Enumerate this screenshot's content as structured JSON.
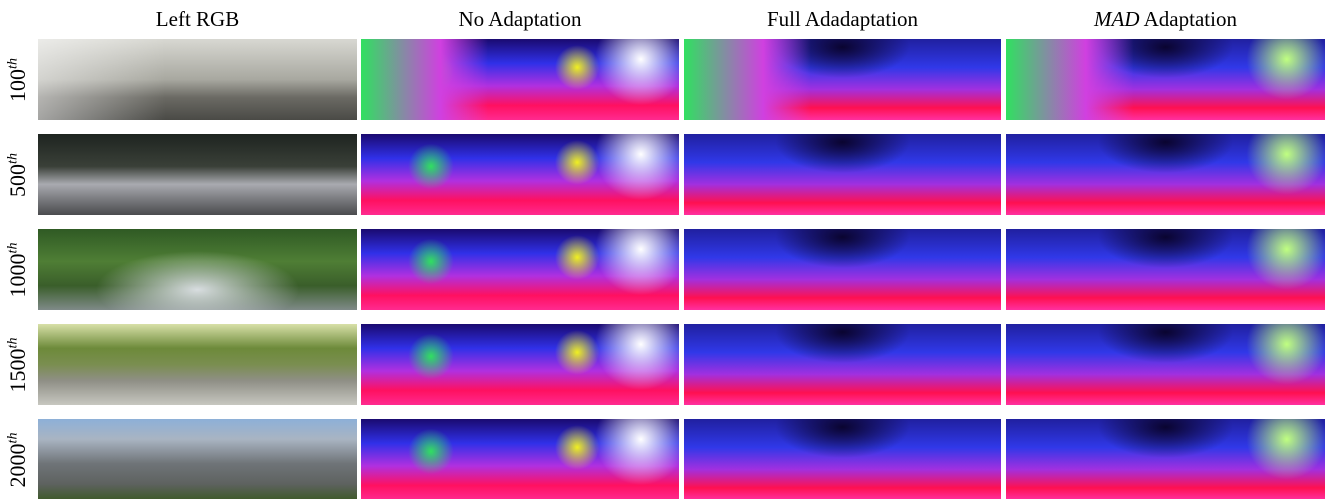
{
  "columns": [
    {
      "text": "Left RGB"
    },
    {
      "text": "No Adaptation"
    },
    {
      "text": "Full Adadaptation"
    },
    {
      "emphasis": "MAD",
      "text": "Adaptation"
    }
  ],
  "rows": [
    {
      "number": "100",
      "suffix": "th"
    },
    {
      "number": "500",
      "suffix": "th"
    },
    {
      "number": "1000",
      "suffix": "th"
    },
    {
      "number": "1500",
      "suffix": "th"
    },
    {
      "number": "2000",
      "suffix": "th"
    }
  ]
}
